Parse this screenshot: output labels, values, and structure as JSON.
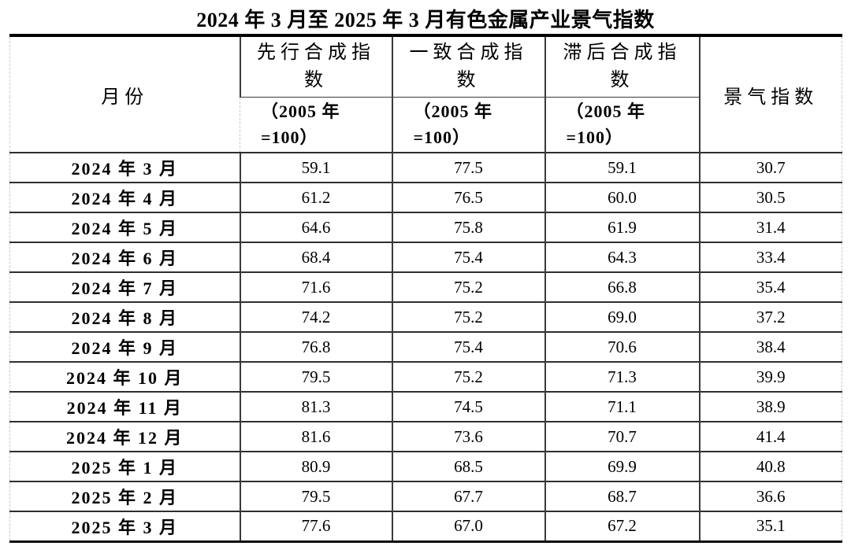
{
  "title": "2024 年 3 月至 2025 年 3 月有色金属产业景气指数",
  "table": {
    "headers": {
      "month": "月份",
      "leading": "先行合成指数",
      "coincident": "一致合成指数",
      "lagging": "滞后合成指数",
      "prosperity": "景气指数"
    },
    "base_note_lines": [
      "（2005 年",
      "=100）"
    ],
    "rows": [
      {
        "month": "2024 年 3 月",
        "leading": "59.1",
        "coincident": "77.5",
        "lagging": "59.1",
        "prosperity": "30.7"
      },
      {
        "month": "2024 年 4 月",
        "leading": "61.2",
        "coincident": "76.5",
        "lagging": "60.0",
        "prosperity": "30.5"
      },
      {
        "month": "2024 年 5 月",
        "leading": "64.6",
        "coincident": "75.8",
        "lagging": "61.9",
        "prosperity": "31.4"
      },
      {
        "month": "2024 年 6 月",
        "leading": "68.4",
        "coincident": "75.4",
        "lagging": "64.3",
        "prosperity": "33.4"
      },
      {
        "month": "2024 年 7 月",
        "leading": "71.6",
        "coincident": "75.2",
        "lagging": "66.8",
        "prosperity": "35.4"
      },
      {
        "month": "2024 年 8 月",
        "leading": "74.2",
        "coincident": "75.2",
        "lagging": "69.0",
        "prosperity": "37.2"
      },
      {
        "month": "2024 年 9 月",
        "leading": "76.8",
        "coincident": "75.4",
        "lagging": "70.6",
        "prosperity": "38.4"
      },
      {
        "month": "2024 年 10 月",
        "leading": "79.5",
        "coincident": "75.2",
        "lagging": "71.3",
        "prosperity": "39.9"
      },
      {
        "month": "2024 年 11 月",
        "leading": "81.3",
        "coincident": "74.5",
        "lagging": "71.1",
        "prosperity": "38.9"
      },
      {
        "month": "2024 年 12 月",
        "leading": "81.6",
        "coincident": "73.6",
        "lagging": "70.7",
        "prosperity": "41.4"
      },
      {
        "month": "2025 年 1 月",
        "leading": "80.9",
        "coincident": "68.5",
        "lagging": "69.9",
        "prosperity": "40.8"
      },
      {
        "month": "2025 年 2 月",
        "leading": "79.5",
        "coincident": "67.7",
        "lagging": "68.7",
        "prosperity": "36.6"
      },
      {
        "month": "2025 年 3 月",
        "leading": "77.6",
        "coincident": "67.0",
        "lagging": "67.2",
        "prosperity": "35.1"
      }
    ],
    "colors": {
      "text": "#000000",
      "border_heavy": "#000000",
      "border_inner": "#3a3a3a",
      "border_edge_dashed": "#c9c9c9",
      "background": "#ffffff"
    }
  }
}
